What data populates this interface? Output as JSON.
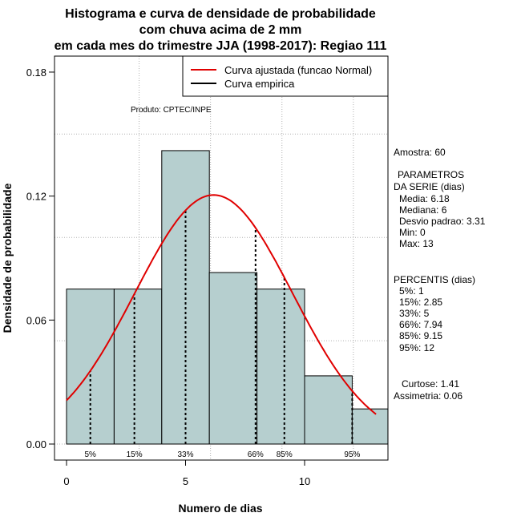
{
  "title_lines": [
    "Histograma e curva de densidade de probabilidade",
    "com chuva acima de 2 mm",
    "em cada mes do trimestre JJA (1998-2017): Regiao 111"
  ],
  "produto": "Produto: CPTEC/INPE",
  "amostra": "Amostra: 60",
  "parametros": {
    "heading": [
      "PARAMETROS",
      "DA SERIE (dias)"
    ],
    "lines": [
      "Media: 6.18",
      "Mediana: 6",
      "Desvio padrao: 3.31",
      "Min: 0",
      "Max: 13"
    ]
  },
  "percentis": {
    "heading": "PERCENTIS (dias)",
    "lines": [
      "5%: 1",
      "15%: 2.85",
      "33%: 5",
      "66%: 7.94",
      "85%: 9.15",
      "95%: 12"
    ]
  },
  "forma": {
    "lines": [
      "Curtose: 1.41",
      "Assimetria: 0.06"
    ]
  },
  "colors": {
    "bar_fill": "#b6cfcf",
    "normal_curve": "#e00000",
    "empirical_curve": "#000000",
    "grid": "#b0b0b0"
  },
  "chart_data": {
    "type": "bar",
    "xlabel": "Numero de dias",
    "ylabel": "Densidade de probabilidade",
    "xlim": [
      -1,
      13.5
    ],
    "ylim": [
      0,
      0.18
    ],
    "xticks": [
      0,
      5,
      10
    ],
    "yticks": [
      0.0,
      0.06,
      0.12,
      0.18
    ],
    "ytick_labels": [
      "0.00",
      "0.06",
      "0.12",
      "0.18"
    ],
    "grid": true,
    "legend_position": "top-right",
    "bins": [
      {
        "x0": 0,
        "x1": 2,
        "density": 0.075
      },
      {
        "x0": 2,
        "x1": 4,
        "density": 0.075
      },
      {
        "x0": 4,
        "x1": 6,
        "density": 0.142
      },
      {
        "x0": 6,
        "x1": 8,
        "density": 0.083
      },
      {
        "x0": 8,
        "x1": 10,
        "density": 0.075
      },
      {
        "x0": 10,
        "x1": 12,
        "density": 0.033
      },
      {
        "x0": 12,
        "x1": 13.5,
        "density": 0.017
      }
    ],
    "series": [
      {
        "name": "Curva ajustada (funcao Normal)",
        "kind": "normal_fit",
        "mean": 6.18,
        "sd": 3.31,
        "x_range": [
          0,
          13
        ]
      },
      {
        "name": "Curva empirica",
        "kind": "empirical"
      }
    ],
    "percentile_markers": [
      {
        "label": "5%",
        "x": 1
      },
      {
        "label": "15%",
        "x": 2.85
      },
      {
        "label": "33%",
        "x": 5
      },
      {
        "label": "66%",
        "x": 7.94
      },
      {
        "label": "85%",
        "x": 9.15
      },
      {
        "label": "95%",
        "x": 12
      }
    ]
  }
}
